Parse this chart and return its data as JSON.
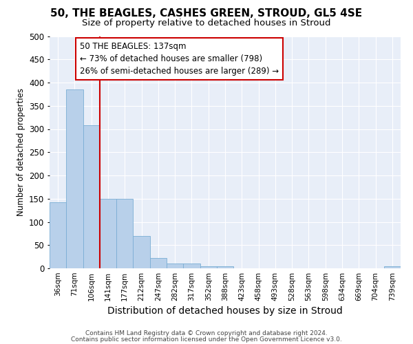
{
  "title1": "50, THE BEAGLES, CASHES GREEN, STROUD, GL5 4SE",
  "title2": "Size of property relative to detached houses in Stroud",
  "xlabel": "Distribution of detached houses by size in Stroud",
  "ylabel": "Number of detached properties",
  "bar_labels": [
    "36sqm",
    "71sqm",
    "106sqm",
    "141sqm",
    "177sqm",
    "212sqm",
    "247sqm",
    "282sqm",
    "317sqm",
    "352sqm",
    "388sqm",
    "423sqm",
    "458sqm",
    "493sqm",
    "528sqm",
    "563sqm",
    "598sqm",
    "634sqm",
    "669sqm",
    "704sqm",
    "739sqm"
  ],
  "bar_values": [
    142,
    385,
    308,
    149,
    149,
    70,
    22,
    10,
    10,
    5,
    5,
    0,
    0,
    0,
    0,
    0,
    0,
    0,
    0,
    0,
    5
  ],
  "bar_color": "#b8d0ea",
  "bar_edge_color": "#7aadd4",
  "vline_x_index": 3,
  "vline_color": "#cc0000",
  "annotation_line1": "50 THE BEAGLES: 137sqm",
  "annotation_line2": "← 73% of detached houses are smaller (798)",
  "annotation_line3": "26% of semi-detached houses are larger (289) →",
  "annotation_box_facecolor": "#ffffff",
  "annotation_box_edgecolor": "#cc0000",
  "ylim": [
    0,
    500
  ],
  "yticks": [
    0,
    50,
    100,
    150,
    200,
    250,
    300,
    350,
    400,
    450,
    500
  ],
  "bg_color": "#e8eef8",
  "grid_color": "#ffffff",
  "title1_fontsize": 11,
  "title2_fontsize": 9.5,
  "ylabel_fontsize": 8.5,
  "xlabel_fontsize": 10,
  "footer1": "Contains HM Land Registry data © Crown copyright and database right 2024.",
  "footer2": "Contains public sector information licensed under the Open Government Licence v3.0."
}
